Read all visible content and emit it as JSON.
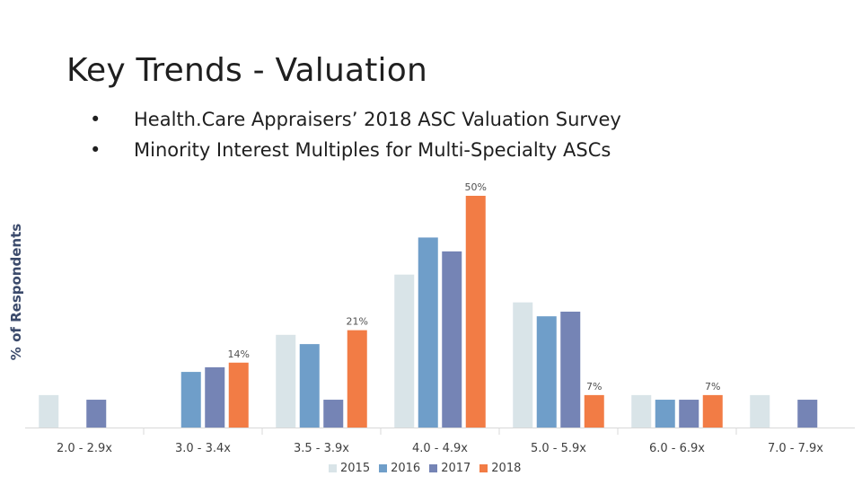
{
  "slide": {
    "title": "Key Trends - Valuation",
    "bullets": [
      {
        "marker": "•",
        "text": "Health.Care Appraisers’ 2018 ASC Valuation Survey"
      },
      {
        "marker": "•",
        "text": "Minority Interest Multiples for Multi-Specialty ASCs"
      }
    ]
  },
  "chart_data": {
    "type": "bar",
    "ylabel": "% of Respondents",
    "categories": [
      "2.0 - 2.9x",
      "3.0 - 3.4x",
      "3.5 - 3.9x",
      "4.0 - 4.9x",
      "5.0 - 5.9x",
      "6.0 - 6.9x",
      "7.0 - 7.9x"
    ],
    "series": [
      {
        "name": "2015",
        "color": "#d9e4e8",
        "values": [
          7,
          0,
          20,
          33,
          27,
          7,
          7
        ]
      },
      {
        "name": "2016",
        "color": "#6f9ec9",
        "values": [
          0,
          12,
          18,
          41,
          24,
          6,
          0
        ]
      },
      {
        "name": "2017",
        "color": "#7584b5",
        "values": [
          6,
          13,
          6,
          38,
          25,
          6,
          6
        ]
      },
      {
        "name": "2018",
        "color": "#f27c45",
        "values": [
          0,
          14,
          21,
          50,
          7,
          7,
          0
        ]
      }
    ],
    "data_labels": [
      {
        "series": "2018",
        "category_index": 1,
        "text": "14%"
      },
      {
        "series": "2018",
        "category_index": 2,
        "text": "21%"
      },
      {
        "series": "2018",
        "category_index": 3,
        "text": "50%"
      },
      {
        "series": "2018",
        "category_index": 4,
        "text": "7%"
      },
      {
        "series": "2018",
        "category_index": 5,
        "text": "7%"
      }
    ],
    "ylim": [
      0,
      52
    ],
    "grid": false,
    "legend_position": "bottom"
  }
}
